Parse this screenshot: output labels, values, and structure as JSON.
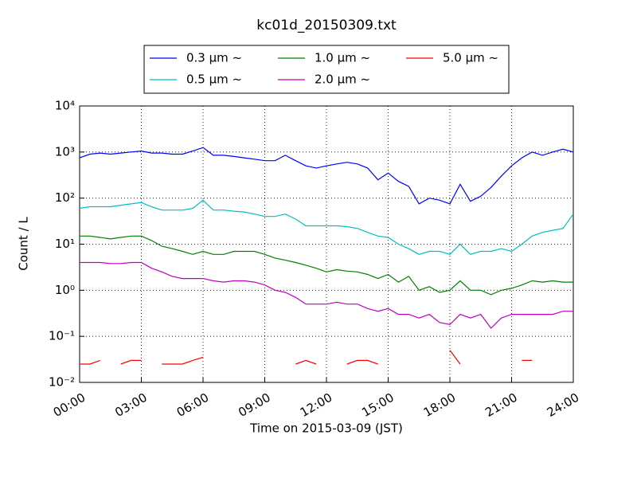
{
  "chart_data": {
    "type": "line",
    "title": "kc01d_20150309.txt",
    "x_label": "Time on 2015-03-09 (JST)",
    "y_label": "Count / L",
    "log_y": true,
    "grid": true,
    "legend": "top",
    "x": [
      "00:00",
      "00:30",
      "01:00",
      "01:30",
      "02:00",
      "02:30",
      "03:00",
      "03:30",
      "04:00",
      "04:30",
      "05:00",
      "05:30",
      "06:00",
      "06:30",
      "07:00",
      "07:30",
      "08:00",
      "08:30",
      "09:00",
      "09:30",
      "10:00",
      "10:30",
      "11:00",
      "11:30",
      "12:00",
      "12:30",
      "13:00",
      "13:30",
      "14:00",
      "14:30",
      "15:00",
      "15:30",
      "16:00",
      "16:30",
      "17:00",
      "17:30",
      "18:00",
      "18:30",
      "19:00",
      "19:30",
      "20:00",
      "20:30",
      "21:00",
      "21:30",
      "22:00",
      "22:30",
      "23:00",
      "23:30",
      "24:00"
    ],
    "xlim": [
      "00:00",
      "24:00"
    ],
    "xticks": [
      "00:00",
      "03:00",
      "06:00",
      "09:00",
      "12:00",
      "15:00",
      "18:00",
      "21:00",
      "24:00"
    ],
    "ylim": [
      0.01,
      10000
    ],
    "yticks": [
      {
        "value": 0.01,
        "label": "10⁻²"
      },
      {
        "value": 0.1,
        "label": "10⁻¹"
      },
      {
        "value": 1,
        "label": "10⁰"
      },
      {
        "value": 10,
        "label": "10¹"
      },
      {
        "value": 100,
        "label": "10²"
      },
      {
        "value": 1000,
        "label": "10³"
      },
      {
        "value": 10000,
        "label": "10⁴"
      }
    ],
    "series": [
      {
        "name": "0.3 μm ~",
        "color": "#0000ff",
        "values": [
          750,
          900,
          950,
          900,
          950,
          1000,
          1050,
          950,
          950,
          900,
          900,
          1050,
          1250,
          850,
          850,
          800,
          750,
          700,
          650,
          650,
          850,
          650,
          500,
          450,
          500,
          550,
          600,
          550,
          450,
          250,
          350,
          230,
          180,
          75,
          100,
          90,
          75,
          200,
          85,
          110,
          170,
          300,
          500,
          750,
          1000,
          850,
          1000,
          1150,
          1000
        ]
      },
      {
        "name": "0.5 μm ~",
        "color": "#00bfbf",
        "values": [
          60,
          65,
          65,
          65,
          70,
          75,
          80,
          65,
          55,
          55,
          55,
          60,
          90,
          55,
          55,
          52,
          50,
          45,
          40,
          40,
          45,
          35,
          25,
          25,
          25,
          25,
          24,
          22,
          18,
          15,
          14,
          10,
          8,
          6,
          7,
          7,
          6,
          10,
          6,
          7,
          7,
          8,
          7,
          10,
          15,
          18,
          20,
          22,
          45
        ]
      },
      {
        "name": "1.0 μm ~",
        "color": "#008000",
        "values": [
          15,
          15,
          14,
          13,
          14,
          15,
          15,
          12,
          9,
          8,
          7,
          6,
          7,
          6,
          6,
          7,
          7,
          7,
          6,
          5,
          4.5,
          4,
          3.5,
          3,
          2.5,
          2.8,
          2.6,
          2.5,
          2.2,
          1.8,
          2.2,
          1.5,
          2,
          1,
          1.2,
          0.9,
          1,
          1.6,
          1,
          1,
          0.8,
          1,
          1.1,
          1.3,
          1.6,
          1.5,
          1.6,
          1.5,
          1.5
        ]
      },
      {
        "name": "2.0 μm ~",
        "color": "#bf00bf",
        "values": [
          4,
          4,
          4,
          3.8,
          3.8,
          4,
          4,
          3,
          2.5,
          2,
          1.8,
          1.8,
          1.8,
          1.6,
          1.5,
          1.6,
          1.6,
          1.5,
          1.3,
          1,
          0.9,
          0.7,
          0.5,
          0.5,
          0.5,
          0.55,
          0.5,
          0.5,
          0.4,
          0.35,
          0.4,
          0.3,
          0.3,
          0.25,
          0.3,
          0.2,
          0.18,
          0.3,
          0.25,
          0.3,
          0.15,
          0.25,
          0.3,
          0.3,
          0.3,
          0.3,
          0.3,
          0.35,
          0.35
        ]
      },
      {
        "name": "5.0 μm ~",
        "color": "#ff0000",
        "values": [
          0.025,
          0.025,
          0.03,
          null,
          0.025,
          0.03,
          0.03,
          null,
          0.025,
          0.025,
          0.025,
          0.03,
          0.035,
          null,
          null,
          null,
          null,
          null,
          null,
          null,
          null,
          0.025,
          0.03,
          0.025,
          null,
          null,
          0.025,
          0.03,
          0.03,
          0.025,
          null,
          null,
          null,
          null,
          null,
          null,
          0.05,
          0.025,
          null,
          null,
          null,
          null,
          null,
          0.03,
          0.03,
          null,
          null,
          null,
          null
        ]
      }
    ]
  }
}
